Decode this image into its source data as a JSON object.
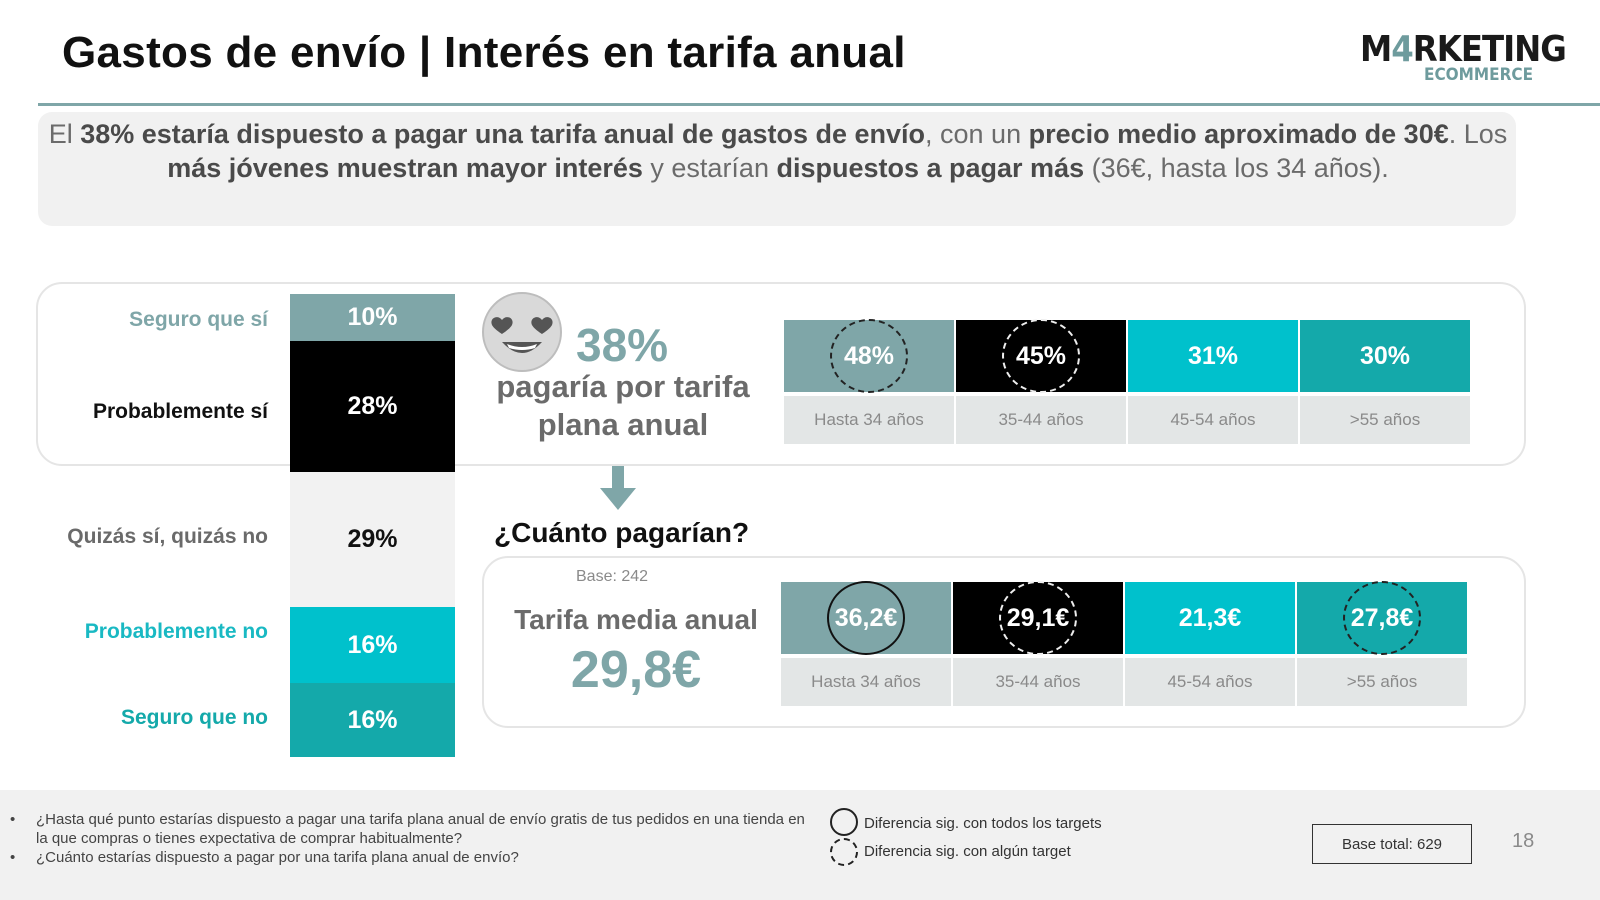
{
  "header": {
    "title": "Gastos de envío | Interés en tarifa anual",
    "logo_main_a": "M",
    "logo_main_four": "4",
    "logo_main_b": "RKETING",
    "logo_sub": "ECOMMERCE"
  },
  "summary": {
    "p1": "El ",
    "b1": "38% estaría dispuesto a pagar una tarifa anual de gastos de envío",
    "p2": ", con un ",
    "b2": "precio medio aproximado de 30€",
    "p3": ". Los ",
    "b3": "más jóvenes muestran mayor interés",
    "p4": " y estarían ",
    "b4": "dispuestos a pagar más",
    "p5": " (36€, hasta los 34 años)."
  },
  "stacked": {
    "categories": [
      "Seguro que sí",
      "Probablemente sí",
      "Quizás sí, quizás no",
      "Probablemente no",
      "Seguro que no"
    ],
    "labels": [
      "10%",
      "28%",
      "29%",
      "16%",
      "16%"
    ]
  },
  "headline": {
    "pct": "38%",
    "text": "pagaría por tarifa plana anual"
  },
  "interest_by_age": {
    "values": [
      "48%",
      "45%",
      "31%",
      "30%"
    ],
    "ages": [
      "Hasta 34 años",
      "35-44 años",
      "45-54 años",
      ">55 años"
    ]
  },
  "question": "¿Cuánto pagarían?",
  "base_242": "Base: 242",
  "tarifa": {
    "label": "Tarifa media anual",
    "value": "29,8€"
  },
  "price_by_age": {
    "values": [
      "36,2€",
      "29,1€",
      "21,3€",
      "27,8€"
    ],
    "ages": [
      "Hasta 34 años",
      "35-44 años",
      "45-54 años",
      ">55 años"
    ]
  },
  "footer": {
    "questions": [
      "¿Hasta qué punto estarías dispuesto a pagar una tarifa plana anual de envío gratis de tus pedidos en una tienda en la que compras o tienes expectativa de comprar habitualmente?",
      "¿Cuánto estarías dispuesto a pagar por una tarifa plana anual de envío?"
    ],
    "legend_solid": "Diferencia sig. con todos los targets",
    "legend_dashed": "Diferencia sig. con algún target",
    "base_total": "Base total: 629",
    "page_number": "18"
  },
  "colors": {
    "grey_teal": "#7fa6a8",
    "black": "#000000",
    "cyan": "#00c1cc",
    "teal": "#14a9aa",
    "neutral": "#f2f2f2"
  },
  "chart_data": [
    {
      "type": "bar",
      "stacked": true,
      "categories": [
        "Seguro que sí",
        "Probablemente sí",
        "Quizás sí, quizás no",
        "Probablemente no",
        "Seguro que no"
      ],
      "values": [
        10,
        28,
        29,
        16,
        16
      ],
      "unit": "%"
    },
    {
      "type": "table",
      "title": "pagaría por tarifa plana anual",
      "categories": [
        "Hasta 34 años",
        "35-44 años",
        "45-54 años",
        ">55 años"
      ],
      "values": [
        48,
        45,
        31,
        30
      ],
      "unit": "%",
      "significance": [
        "dashed",
        "dashed",
        "none",
        "none"
      ]
    },
    {
      "type": "table",
      "title": "Tarifa media anual",
      "categories": [
        "Hasta 34 años",
        "35-44 años",
        "45-54 años",
        ">55 años"
      ],
      "values": [
        36.2,
        29.1,
        21.3,
        27.8
      ],
      "unit": "€",
      "significance": [
        "solid",
        "dashed",
        "none",
        "dashed"
      ]
    }
  ]
}
